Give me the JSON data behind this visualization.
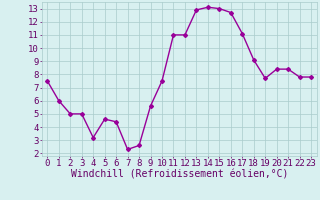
{
  "x": [
    0,
    1,
    2,
    3,
    4,
    5,
    6,
    7,
    8,
    9,
    10,
    11,
    12,
    13,
    14,
    15,
    16,
    17,
    18,
    19,
    20,
    21,
    22,
    23
  ],
  "y": [
    7.5,
    6.0,
    5.0,
    5.0,
    3.2,
    4.6,
    4.4,
    2.3,
    2.6,
    5.6,
    7.5,
    11.0,
    11.0,
    12.9,
    13.1,
    13.0,
    12.7,
    11.1,
    9.1,
    7.7,
    8.4,
    8.4,
    7.8,
    7.8
  ],
  "line_color": "#990099",
  "marker": "D",
  "marker_size": 2,
  "line_width": 1.0,
  "xlabel": "Windchill (Refroidissement éolien,°C)",
  "ylabel_ticks": [
    2,
    3,
    4,
    5,
    6,
    7,
    8,
    9,
    10,
    11,
    12,
    13
  ],
  "ylim": [
    1.8,
    13.5
  ],
  "xlim": [
    -0.5,
    23.5
  ],
  "bg_color": "#d8f0f0",
  "grid_color": "#aacccc",
  "tick_label_color": "#660066",
  "xlabel_color": "#660066",
  "xlabel_fontsize": 7.0,
  "tick_fontsize": 6.5
}
